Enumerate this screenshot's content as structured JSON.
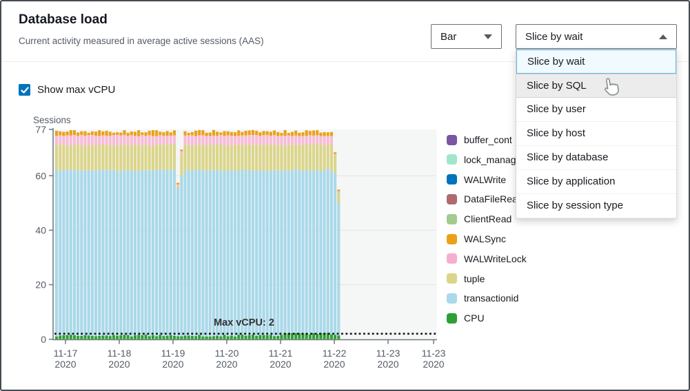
{
  "window": {
    "title": "Database load",
    "subtitle": "Current activity measured in average active sessions (AAS)"
  },
  "controls": {
    "chart_type": {
      "value": "Bar"
    },
    "slice_by": {
      "value": "Slice by wait"
    },
    "show_max_vcpu": {
      "label": "Show max vCPU",
      "checked": true
    }
  },
  "slice_menu": {
    "options": [
      {
        "label": "Slice by wait",
        "state": "selected"
      },
      {
        "label": "Slice by SQL",
        "state": "hovered"
      },
      {
        "label": "Slice by user",
        "state": "normal"
      },
      {
        "label": "Slice by host",
        "state": "normal"
      },
      {
        "label": "Slice by database",
        "state": "normal"
      },
      {
        "label": "Slice by application",
        "state": "normal"
      },
      {
        "label": "Slice by session type",
        "state": "normal"
      }
    ]
  },
  "colors": {
    "accent_blue": "#0073BB",
    "selected_item_bg": "#F1FAFF",
    "selected_item_border": "#62B3D9",
    "hover_item_bg": "#ECECEC",
    "axis": "#70777E",
    "grid": "#E4E4E4",
    "plot_bg": "#F5F6F6",
    "max_vcpu_line": "#141414"
  },
  "chart_data": {
    "type": "bar",
    "stacked": true,
    "ylabel": "Sessions",
    "ylim": [
      0,
      77
    ],
    "yticks": [
      0,
      20,
      40,
      60,
      77
    ],
    "x_tick_labels": [
      "11-17",
      "11-18",
      "11-19",
      "11-20",
      "11-21",
      "11-22",
      "11-23",
      "11-23"
    ],
    "x_tick_sublabel": "2020",
    "bar_count": 80,
    "series": [
      {
        "name": "CPU",
        "color": "#2EA033",
        "baseline_top": 1.4
      },
      {
        "name": "transactionid",
        "color": "#A9D9EA",
        "baseline_top": 62
      },
      {
        "name": "tuple",
        "color": "#DBD58A",
        "baseline_top": 71.3
      },
      {
        "name": "WALWriteLock",
        "color": "#F8BCD7",
        "baseline_top": 74.7
      },
      {
        "name": "WALSync",
        "color": "#EBA117",
        "baseline_top": 76.2
      }
    ],
    "anomalies": [
      {
        "index": 34,
        "tops": {
          "CPU": 1.1,
          "transactionid": 55.5,
          "tuple": 56.2,
          "WALWriteLock": 56.8,
          "WALSync": 57.4
        }
      },
      {
        "index": 35,
        "tops": {
          "CPU": 1.1,
          "transactionid": 60.0,
          "tuple": 68.0,
          "WALWriteLock": 69.0,
          "WALSync": 69.6
        }
      },
      {
        "index": 78,
        "tops": {
          "CPU": 1.6,
          "transactionid": 61.0,
          "tuple": 67.5,
          "WALWriteLock": 68.0,
          "WALSync": 68.6
        }
      },
      {
        "index": 79,
        "tops": {
          "CPU": 1.4,
          "transactionid": 50.0,
          "tuple": 54.0,
          "WALWriteLock": 54.3,
          "WALSync": 54.9
        }
      }
    ],
    "max_vcpu": {
      "value": 2,
      "label": "Max vCPU: 2"
    },
    "legend": [
      {
        "label": "buffer_cont",
        "color": "#7B56A3"
      },
      {
        "label": "lock_manag",
        "color": "#9FE7CB"
      },
      {
        "label": "WALWrite",
        "color": "#0073BB"
      },
      {
        "label": "DataFileRea",
        "color": "#B06A6E"
      },
      {
        "label": "ClientRead",
        "color": "#A2CB8E"
      },
      {
        "label": "WALSync",
        "color": "#EBA117"
      },
      {
        "label": "WALWriteLock",
        "color": "#F6AED0"
      },
      {
        "label": "tuple",
        "color": "#DBD58A"
      },
      {
        "label": "transactionid",
        "color": "#A9D9EA"
      },
      {
        "label": "CPU",
        "color": "#2EA033"
      }
    ]
  }
}
